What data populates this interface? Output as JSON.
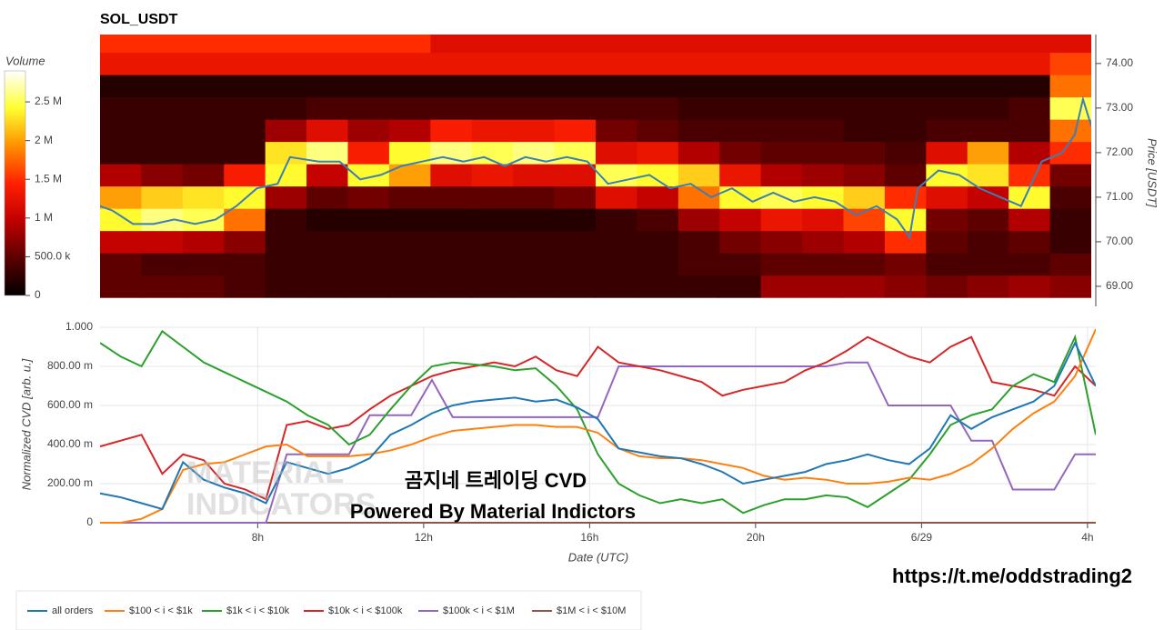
{
  "chart_data": [
    {
      "type": "heatmap",
      "title": "SOL_USDT",
      "ylabel": "Price [USDT]",
      "colorbar_title": "Volume",
      "xlim": [
        4.2,
        28.2
      ],
      "x_edges": [
        4.2,
        5.2,
        6.2,
        7.2,
        8.2,
        9.2,
        10.2,
        11.2,
        12.2,
        13.2,
        14.2,
        15.2,
        16.2,
        17.2,
        18.2,
        19.2,
        20.2,
        21.2,
        22.2,
        23.2,
        24.2,
        25.2,
        26.2,
        27.2,
        28.2
      ],
      "y": [
        69.0,
        69.5,
        70.0,
        70.5,
        71.0,
        71.5,
        72.0,
        72.5,
        73.0,
        73.5,
        74.0,
        74.5
      ],
      "ylim": [
        68.55,
        74.65
      ],
      "yticks": [
        {
          "value": 69,
          "label": "69.00"
        },
        {
          "value": 70,
          "label": "70.00"
        },
        {
          "value": 71,
          "label": "71.00"
        },
        {
          "value": 72,
          "label": "72.00"
        },
        {
          "value": 73,
          "label": "73.00"
        },
        {
          "value": 74,
          "label": "74.00"
        }
      ],
      "clim": [
        0,
        2900000.0
      ],
      "cticks": [
        0,
        {
          "value": 500000.0,
          "label": "500.0 k"
        },
        {
          "value": 1000000.0,
          "label": "1 M"
        },
        {
          "value": 1500000.0,
          "label": "1.5 M"
        },
        {
          "value": 2000000.0,
          "label": "2 M"
        },
        {
          "value": 2500000.0,
          "label": "2.5 M"
        }
      ],
      "colorscale": [
        "#000000",
        "#5a0000",
        "#c00000",
        "#ff2000",
        "#ff9000",
        "#ffff30",
        "#ffffff"
      ],
      "z": [
        [
          500000.0,
          500000.0,
          500000.0,
          400000.0,
          300000.0,
          300000.0,
          300000.0,
          300000.0,
          300000.0,
          300000.0,
          300000.0,
          300000.0,
          300000.0,
          300000.0,
          300000.0,
          300000.0,
          800000.0,
          800000.0,
          800000.0,
          700000.0,
          600000.0,
          700000.0,
          800000.0,
          700000.0
        ],
        [
          500000.0,
          400000.0,
          400000.0,
          400000.0,
          300000.0,
          300000.0,
          300000.0,
          300000.0,
          300000.0,
          300000.0,
          300000.0,
          300000.0,
          300000.0,
          300000.0,
          400000.0,
          400000.0,
          500000.0,
          500000.0,
          500000.0,
          600000.0,
          400000.0,
          400000.0,
          400000.0,
          500000.0
        ],
        [
          1000000.0,
          1000000.0,
          900000.0,
          700000.0,
          300000.0,
          300000.0,
          300000.0,
          300000.0,
          300000.0,
          300000.0,
          300000.0,
          300000.0,
          300000.0,
          300000.0,
          400000.0,
          600000.0,
          700000.0,
          800000.0,
          900000.0,
          1500000.0,
          500000.0,
          400000.0,
          500000.0,
          300000.0
        ],
        [
          2400000.0,
          2600000.0,
          2500000.0,
          1800000.0,
          300000.0,
          200000.0,
          200000.0,
          200000.0,
          200000.0,
          200000.0,
          200000.0,
          200000.0,
          300000.0,
          400000.0,
          800000.0,
          1000000.0,
          1300000.0,
          1200000.0,
          1600000.0,
          2400000.0,
          600000.0,
          500000.0,
          900000.0,
          300000.0
        ],
        [
          2000000.0,
          2200000.0,
          2300000.0,
          2400000.0,
          800000.0,
          500000.0,
          600000.0,
          500000.0,
          500000.0,
          500000.0,
          500000.0,
          600000.0,
          1200000.0,
          1000000.0,
          1800000.0,
          2400000.0,
          2500000.0,
          2400000.0,
          2200000.0,
          1500000.0,
          1200000.0,
          1000000.0,
          2400000.0,
          400000.0
        ],
        [
          900000.0,
          700000.0,
          600000.0,
          1400000.0,
          2400000.0,
          1000000.0,
          2400000.0,
          2000000.0,
          1200000.0,
          1300000.0,
          1200000.0,
          1200000.0,
          2500000.0,
          2400000.0,
          2200000.0,
          1300000.0,
          900000.0,
          800000.0,
          700000.0,
          500000.0,
          2400000.0,
          2300000.0,
          1500000.0,
          600000.0
        ],
        [
          300000.0,
          300000.0,
          300000.0,
          300000.0,
          2300000.0,
          2600000.0,
          1400000.0,
          2400000.0,
          2600000.0,
          2500000.0,
          2600000.0,
          2500000.0,
          1200000.0,
          1300000.0,
          900000.0,
          600000.0,
          500000.0,
          500000.0,
          500000.0,
          400000.0,
          1200000.0,
          2000000.0,
          900000.0,
          1500000.0
        ],
        [
          300000.0,
          300000.0,
          300000.0,
          300000.0,
          800000.0,
          1200000.0,
          800000.0,
          900000.0,
          1400000.0,
          1300000.0,
          1300000.0,
          1400000.0,
          600000.0,
          500000.0,
          400000.0,
          400000.0,
          400000.0,
          400000.0,
          300000.0,
          300000.0,
          400000.0,
          400000.0,
          400000.0,
          1800000.0
        ],
        [
          300000.0,
          300000.0,
          300000.0,
          300000.0,
          300000.0,
          400000.0,
          400000.0,
          400000.0,
          400000.0,
          400000.0,
          400000.0,
          400000.0,
          400000.0,
          400000.0,
          300000.0,
          300000.0,
          300000.0,
          300000.0,
          300000.0,
          300000.0,
          300000.0,
          300000.0,
          400000.0,
          2500000.0
        ],
        [
          200000.0,
          200000.0,
          200000.0,
          200000.0,
          200000.0,
          200000.0,
          200000.0,
          200000.0,
          200000.0,
          200000.0,
          200000.0,
          200000.0,
          200000.0,
          200000.0,
          200000.0,
          200000.0,
          200000.0,
          200000.0,
          200000.0,
          200000.0,
          200000.0,
          200000.0,
          200000.0,
          1800000.0
        ],
        [
          1300000.0,
          1300000.0,
          1300000.0,
          1300000.0,
          1300000.0,
          1300000.0,
          1300000.0,
          1300000.0,
          1300000.0,
          1300000.0,
          1300000.0,
          1300000.0,
          1300000.0,
          1300000.0,
          1300000.0,
          1300000.0,
          1300000.0,
          1300000.0,
          1300000.0,
          1300000.0,
          1300000.0,
          1300000.0,
          1300000.0,
          1600000.0
        ],
        [
          1500000.0,
          1500000.0,
          1500000.0,
          1500000.0,
          1500000.0,
          1500000.0,
          1500000.0,
          1500000.0,
          1200000.0,
          1200000.0,
          1200000.0,
          1200000.0,
          1200000.0,
          1200000.0,
          1200000.0,
          1200000.0,
          1200000.0,
          1200000.0,
          1200000.0,
          1200000.0,
          1200000.0,
          1200000.0,
          1200000.0,
          1200000.0
        ]
      ],
      "series": [
        {
          "color": "#3a7fb8",
          "x": [
            4.2,
            4.5,
            5,
            5.5,
            6,
            6.5,
            7,
            7.5,
            8,
            8.5,
            8.8,
            9.5,
            10,
            10.5,
            11,
            11.5,
            12,
            12.5,
            13,
            13.5,
            14,
            14.5,
            15,
            15.5,
            16,
            16.5,
            17,
            17.5,
            18,
            18.5,
            19,
            19.5,
            20,
            20.5,
            21,
            21.5,
            22,
            22.5,
            23,
            23.5,
            23.8,
            24,
            24.5,
            25,
            25.5,
            26,
            26.5,
            27,
            27.5,
            27.8,
            28,
            28.2
          ],
          "values": [
            70.8,
            70.7,
            70.4,
            70.4,
            70.5,
            70.4,
            70.5,
            70.8,
            71.2,
            71.3,
            71.9,
            71.8,
            71.8,
            71.4,
            71.5,
            71.7,
            71.8,
            71.9,
            71.8,
            71.9,
            71.7,
            71.9,
            71.8,
            71.9,
            71.8,
            71.3,
            71.4,
            71.5,
            71.2,
            71.3,
            71.0,
            71.2,
            70.9,
            71.1,
            70.9,
            71.0,
            70.9,
            70.6,
            70.8,
            70.5,
            70.1,
            71.2,
            71.6,
            71.5,
            71.2,
            71.0,
            70.8,
            71.8,
            72.0,
            72.4,
            73.2,
            72.6
          ]
        }
      ]
    },
    {
      "type": "line",
      "xlabel": "Date (UTC)",
      "ylabel": "Normalized CVD [arb. u.]",
      "xlim": [
        4.2,
        28.2
      ],
      "ylim": [
        0,
        1
      ],
      "grid": true,
      "xticks": [
        {
          "value": 8,
          "label": "8h"
        },
        {
          "value": 12,
          "label": "12h"
        },
        {
          "value": 16,
          "label": "16h"
        },
        {
          "value": 20,
          "label": "20h"
        },
        {
          "value": 24,
          "label": "6/29"
        },
        {
          "value": 28,
          "label": "4h"
        }
      ],
      "yticks": [
        0,
        {
          "value": 0.2,
          "label": "200.00 m"
        },
        {
          "value": 0.4,
          "label": "400.00 m"
        },
        {
          "value": 0.6,
          "label": "600.00 m"
        },
        {
          "value": 0.8,
          "label": "800.00 m"
        },
        {
          "value": 1,
          "label": "1.000"
        }
      ],
      "x": [
        4.2,
        4.7,
        5.2,
        5.7,
        6.2,
        6.7,
        7.2,
        7.7,
        8.2,
        8.7,
        9.2,
        9.7,
        10.2,
        10.7,
        11.2,
        11.7,
        12.2,
        12.7,
        13.2,
        13.7,
        14.2,
        14.7,
        15.2,
        15.7,
        16.2,
        16.7,
        17.2,
        17.7,
        18.2,
        18.7,
        19.2,
        19.7,
        20.2,
        20.7,
        21.2,
        21.7,
        22.2,
        22.7,
        23.2,
        23.7,
        24.2,
        24.7,
        25.2,
        25.7,
        26.2,
        26.7,
        27.2,
        27.7,
        28.2
      ],
      "series": [
        {
          "name": "all orders",
          "color": "#1f77b4",
          "values": [
            0.15,
            0.13,
            0.1,
            0.07,
            0.31,
            0.22,
            0.18,
            0.15,
            0.1,
            0.31,
            0.28,
            0.25,
            0.28,
            0.33,
            0.45,
            0.5,
            0.56,
            0.6,
            0.62,
            0.63,
            0.64,
            0.62,
            0.63,
            0.59,
            0.53,
            0.38,
            0.36,
            0.34,
            0.33,
            0.3,
            0.26,
            0.2,
            0.22,
            0.24,
            0.26,
            0.3,
            0.32,
            0.35,
            0.32,
            0.3,
            0.38,
            0.55,
            0.48,
            0.54,
            0.58,
            0.62,
            0.7,
            0.92,
            0.7
          ]
        },
        {
          "name": "$100 < i < $1k",
          "color": "#ff7f0e",
          "values": [
            0,
            0,
            0.02,
            0.07,
            0.27,
            0.3,
            0.31,
            0.35,
            0.39,
            0.4,
            0.34,
            0.34,
            0.34,
            0.35,
            0.37,
            0.4,
            0.44,
            0.47,
            0.48,
            0.49,
            0.5,
            0.5,
            0.49,
            0.49,
            0.46,
            0.38,
            0.34,
            0.33,
            0.33,
            0.32,
            0.3,
            0.28,
            0.24,
            0.22,
            0.23,
            0.22,
            0.2,
            0.2,
            0.21,
            0.23,
            0.22,
            0.25,
            0.3,
            0.38,
            0.48,
            0.56,
            0.62,
            0.75,
            0.99
          ]
        },
        {
          "name": "$1k < i < $10k",
          "color": "#2ca02c",
          "values": [
            0.92,
            0.85,
            0.8,
            0.98,
            0.9,
            0.82,
            0.77,
            0.72,
            0.67,
            0.62,
            0.55,
            0.5,
            0.4,
            0.45,
            0.58,
            0.7,
            0.8,
            0.82,
            0.81,
            0.8,
            0.78,
            0.79,
            0.7,
            0.58,
            0.35,
            0.2,
            0.14,
            0.1,
            0.12,
            0.1,
            0.12,
            0.05,
            0.09,
            0.12,
            0.12,
            0.14,
            0.13,
            0.08,
            0.15,
            0.22,
            0.35,
            0.5,
            0.55,
            0.58,
            0.7,
            0.76,
            0.72,
            0.95,
            0.45
          ]
        },
        {
          "name": "$10k < i < $100k",
          "color": "#d62728",
          "values": [
            0.39,
            0.42,
            0.45,
            0.25,
            0.35,
            0.32,
            0.2,
            0.17,
            0.12,
            0.5,
            0.52,
            0.48,
            0.5,
            0.58,
            0.65,
            0.7,
            0.75,
            0.78,
            0.8,
            0.82,
            0.8,
            0.85,
            0.78,
            0.75,
            0.9,
            0.82,
            0.8,
            0.78,
            0.75,
            0.72,
            0.65,
            0.68,
            0.7,
            0.72,
            0.78,
            0.82,
            0.88,
            0.95,
            0.9,
            0.85,
            0.82,
            0.9,
            0.95,
            0.72,
            0.7,
            0.68,
            0.65,
            0.8,
            0.7
          ]
        },
        {
          "name": "$100k < i < $1M",
          "color": "#9467bd",
          "values": [
            0,
            0,
            0,
            0,
            0,
            0,
            0,
            0,
            0,
            0.35,
            0.35,
            0.35,
            0.35,
            0.55,
            0.55,
            0.55,
            0.73,
            0.54,
            0.54,
            0.54,
            0.54,
            0.54,
            0.54,
            0.54,
            0.54,
            0.8,
            0.8,
            0.8,
            0.8,
            0.8,
            0.8,
            0.8,
            0.8,
            0.8,
            0.8,
            0.8,
            0.82,
            0.82,
            0.6,
            0.6,
            0.6,
            0.6,
            0.42,
            0.42,
            0.17,
            0.17,
            0.17,
            0.35,
            0.35
          ]
        },
        {
          "name": "$1M < i < $10M",
          "color": "#8c564b",
          "values": [
            0,
            0,
            0,
            0,
            0,
            0,
            0,
            0,
            0,
            0,
            0,
            0,
            0,
            0,
            0,
            0,
            0,
            0,
            0,
            0,
            0,
            0,
            0,
            0,
            0,
            0,
            0,
            0,
            0,
            0,
            0,
            0,
            0,
            0,
            0,
            0,
            0,
            0,
            0,
            0,
            0,
            0,
            0,
            0,
            0,
            0,
            0,
            0,
            0
          ]
        }
      ],
      "watermark": [
        "MATERIAL",
        "INDICATORS"
      ],
      "annotations": [
        "곰지네 트레이딩 CVD",
        "Powered By Material Indictors"
      ],
      "source": "https://t.me/oddstrading2"
    }
  ]
}
